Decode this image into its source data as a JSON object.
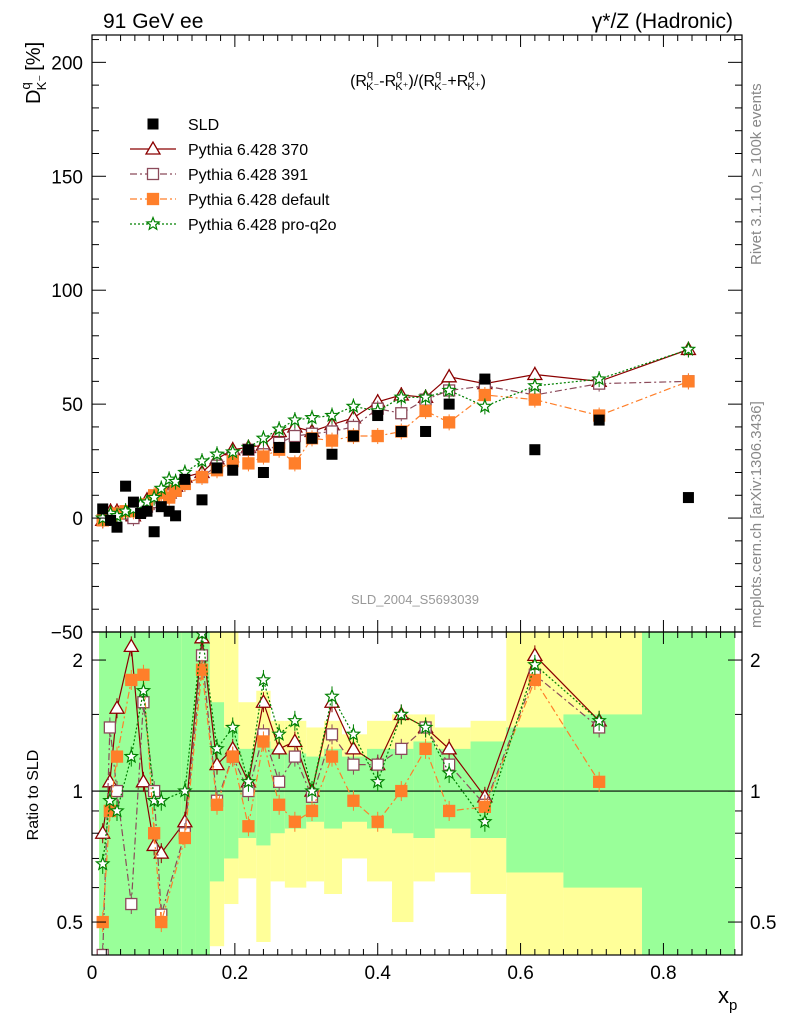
{
  "header": {
    "left": "91 GeV ee",
    "right": "γ*/Z (Hadronic)"
  },
  "side_text": {
    "rivet": "Rivet 3.1.10, ≥ 100k events",
    "mcplots": "mcplots.cern.ch [arXiv:1306.3436]"
  },
  "chart_data": {
    "type": "scatter",
    "title": "(R^q_K- - R^q_K+)/(R^q_K- + R^q_K+)",
    "ylabel": "D^q_K- [%]",
    "ylabel_main": "D",
    "ylabel_sup": "q",
    "ylabel_sub": "K⁻",
    "ylabel_unit": "[%]",
    "annotation_parts": [
      "(R",
      "q",
      "K⁻",
      "-R",
      "q",
      "K⁺",
      ")/(R",
      "q",
      "K⁻",
      "+R",
      "q",
      "K⁺",
      ")"
    ],
    "ratio_ylabel": "Ratio to SLD",
    "xlabel": "x",
    "xlabel_sub": "p",
    "watermark": "SLD_2004_S5693039",
    "xlim": [
      0,
      0.91
    ],
    "ylim": [
      -50,
      212
    ],
    "ratio_ylim": [
      0.42,
      2.32
    ],
    "ratio_log": true,
    "x_ticks": [
      0,
      0.2,
      0.4,
      0.6,
      0.8
    ],
    "x_tick_labels": [
      "0",
      "0.2",
      "0.4",
      "0.6",
      "0.8"
    ],
    "y_ticks": [
      -50,
      0,
      50,
      100,
      150,
      200
    ],
    "y_tick_labels": [
      "−50",
      "0",
      "50",
      "100",
      "150",
      "200"
    ],
    "ratio_ticks": [
      0.5,
      1,
      2
    ],
    "ratio_tick_labels": [
      "0.5",
      "1",
      "2"
    ],
    "colors": {
      "data": "#000000",
      "p370": "#8b0000",
      "p391": "#8b4a5a",
      "pdefault": "#ff7f2a",
      "pq2o": "#008000",
      "band_inner": "#99ff99",
      "band_outer": "#ffff99"
    },
    "legend_placement": "top-left",
    "legend": [
      {
        "key": "data",
        "label": "SLD"
      },
      {
        "key": "p370",
        "label": "Pythia 6.428 370"
      },
      {
        "key": "p391",
        "label": "Pythia 6.428 391"
      },
      {
        "key": "pdefault",
        "label": "Pythia 6.428 default"
      },
      {
        "key": "pq2o",
        "label": "Pythia 6.428 pro-q2o"
      }
    ],
    "data_points": {
      "x": [
        0.015,
        0.026,
        0.035,
        0.047,
        0.058,
        0.068,
        0.077,
        0.087,
        0.097,
        0.108,
        0.117,
        0.13,
        0.154,
        0.175,
        0.197,
        0.219,
        0.24,
        0.262,
        0.284,
        0.308,
        0.336,
        0.366,
        0.4,
        0.433,
        0.467,
        0.5,
        0.55,
        0.62,
        0.71,
        0.835
      ],
      "y": [
        4,
        -1,
        -4,
        14,
        7,
        2,
        3,
        -6,
        5,
        3,
        1,
        17,
        8,
        22,
        21,
        30,
        20,
        31,
        31,
        35,
        28,
        36,
        45,
        38,
        38,
        50,
        61,
        30,
        43,
        9
      ]
    },
    "series": [
      {
        "key": "p370",
        "name": "Pythia 6.428 370",
        "style": "solid",
        "marker": "triangle",
        "x": [
          0.015,
          0.026,
          0.035,
          0.047,
          0.058,
          0.068,
          0.077,
          0.087,
          0.097,
          0.108,
          0.117,
          0.13,
          0.154,
          0.175,
          0.197,
          0.219,
          0.24,
          0.262,
          0.284,
          0.308,
          0.336,
          0.366,
          0.4,
          0.433,
          0.467,
          0.5,
          0.55,
          0.62,
          0.71,
          0.835
        ],
        "y": [
          -1,
          3,
          3,
          2,
          1,
          5,
          8,
          7,
          12,
          11,
          14,
          18,
          20,
          26,
          30,
          31,
          32,
          38,
          40,
          38,
          41,
          44,
          51,
          54,
          53,
          62,
          59,
          63,
          60,
          74
        ]
      },
      {
        "key": "p391",
        "name": "Pythia 6.428 391",
        "style": "dashdot",
        "marker": "square",
        "x": [
          0.015,
          0.026,
          0.035,
          0.047,
          0.058,
          0.068,
          0.077,
          0.087,
          0.097,
          0.108,
          0.117,
          0.13,
          0.154,
          0.175,
          0.197,
          0.219,
          0.24,
          0.262,
          0.284,
          0.308,
          0.336,
          0.366,
          0.4,
          0.433,
          0.467,
          0.5,
          0.55,
          0.62,
          0.71,
          0.835
        ],
        "y": [
          -1,
          0,
          2,
          2,
          0,
          3,
          5,
          7,
          9,
          10,
          12,
          15,
          18,
          23,
          27,
          30,
          28,
          33,
          36,
          37,
          38,
          40,
          48,
          46,
          52,
          56,
          58,
          54,
          59,
          60
        ]
      },
      {
        "key": "pdefault",
        "name": "Pythia 6.428 default",
        "style": "dashdot",
        "marker": "filledsquare",
        "x": [
          0.015,
          0.026,
          0.035,
          0.047,
          0.058,
          0.068,
          0.077,
          0.087,
          0.097,
          0.108,
          0.117,
          0.13,
          0.154,
          0.175,
          0.197,
          0.219,
          0.24,
          0.262,
          0.284,
          0.308,
          0.336,
          0.366,
          0.4,
          0.433,
          0.467,
          0.5,
          0.55,
          0.62,
          0.71,
          0.835
        ],
        "y": [
          -1,
          1,
          2,
          3,
          3,
          5,
          6,
          10,
          11,
          9,
          12,
          15,
          18,
          21,
          25,
          24,
          27,
          30,
          24,
          35,
          34,
          36,
          36,
          38,
          47,
          42,
          54,
          52,
          45,
          60
        ]
      },
      {
        "key": "pq2o",
        "name": "Pythia 6.428 pro-q2o",
        "style": "dotted",
        "marker": "star",
        "x": [
          0.015,
          0.026,
          0.035,
          0.047,
          0.058,
          0.068,
          0.077,
          0.087,
          0.097,
          0.108,
          0.117,
          0.13,
          0.154,
          0.175,
          0.197,
          0.219,
          0.24,
          0.262,
          0.284,
          0.308,
          0.336,
          0.366,
          0.4,
          0.433,
          0.467,
          0.5,
          0.55,
          0.62,
          0.71,
          0.835
        ],
        "y": [
          0,
          2,
          1,
          3,
          4,
          6,
          7,
          9,
          13,
          17,
          16,
          20,
          25,
          28,
          29,
          31,
          35,
          39,
          43,
          44,
          45,
          49,
          47,
          53,
          53,
          56,
          49,
          58,
          61,
          74
        ]
      }
    ],
    "ratios": {
      "x": [
        0.015,
        0.025,
        0.035,
        0.055,
        0.072,
        0.087,
        0.097,
        0.13,
        0.154,
        0.175,
        0.197,
        0.219,
        0.24,
        0.262,
        0.284,
        0.308,
        0.336,
        0.366,
        0.4,
        0.433,
        0.467,
        0.5,
        0.55,
        0.62,
        0.71
      ],
      "p370": [
        0.8,
        1.05,
        1.55,
        2.15,
        1.05,
        0.75,
        0.72,
        0.85,
        2.25,
        1.15,
        1.25,
        1.05,
        1.6,
        1.25,
        1.3,
        1.0,
        1.6,
        1.25,
        1.15,
        1.5,
        1.4,
        1.25,
        0.97,
        2.05,
        1.45
      ],
      "p391": [
        0.42,
        1.4,
        1.0,
        0.55,
        1.6,
        1.0,
        0.52,
        0.8,
        2.05,
        0.95,
        1.2,
        1.0,
        1.35,
        1.05,
        1.2,
        0.97,
        1.35,
        1.15,
        1.15,
        1.25,
        1.4,
        1.15,
        0.93,
        1.85,
        1.4
      ],
      "pdefault": [
        0.5,
        0.9,
        1.2,
        1.8,
        1.85,
        0.8,
        0.5,
        0.78,
        1.9,
        0.93,
        1.2,
        0.83,
        1.3,
        0.93,
        0.85,
        0.9,
        1.2,
        0.95,
        0.85,
        1.0,
        1.25,
        0.9,
        0.92,
        1.8,
        1.05
      ],
      "pq2o": [
        0.68,
        0.95,
        0.9,
        1.2,
        1.7,
        0.95,
        0.95,
        1.0,
        2.3,
        1.25,
        1.4,
        1.05,
        1.8,
        1.35,
        1.45,
        1.0,
        1.65,
        1.35,
        1.05,
        1.5,
        1.4,
        1.1,
        0.85,
        1.95,
        1.45
      ]
    },
    "error_bands": [
      {
        "x0": 0.01,
        "x1": 0.125,
        "in_lo": 0.42,
        "in_hi": 2.32,
        "out_lo": 0.42,
        "out_hi": 2.32
      },
      {
        "x0": 0.125,
        "x1": 0.145,
        "in_lo": 0.42,
        "in_hi": 2.32,
        "out_lo": 0.42,
        "out_hi": 2.32
      },
      {
        "x0": 0.145,
        "x1": 0.165,
        "in_lo": 0.42,
        "in_hi": 2.32,
        "out_lo": 0.42,
        "out_hi": 2.32
      },
      {
        "x0": 0.165,
        "x1": 0.185,
        "in_lo": 0.62,
        "in_hi": 1.6,
        "out_lo": 0.44,
        "out_hi": 2.32
      },
      {
        "x0": 0.185,
        "x1": 0.205,
        "in_lo": 0.7,
        "in_hi": 1.4,
        "out_lo": 0.55,
        "out_hi": 2.32
      },
      {
        "x0": 0.205,
        "x1": 0.23,
        "in_lo": 0.78,
        "in_hi": 1.25,
        "out_lo": 0.63,
        "out_hi": 1.6
      },
      {
        "x0": 0.23,
        "x1": 0.25,
        "in_lo": 0.75,
        "in_hi": 1.3,
        "out_lo": 0.45,
        "out_hi": 1.7
      },
      {
        "x0": 0.25,
        "x1": 0.27,
        "in_lo": 0.8,
        "in_hi": 1.25,
        "out_lo": 0.62,
        "out_hi": 1.45
      },
      {
        "x0": 0.27,
        "x1": 0.3,
        "in_lo": 0.82,
        "in_hi": 1.22,
        "out_lo": 0.6,
        "out_hi": 1.45
      },
      {
        "x0": 0.3,
        "x1": 0.325,
        "in_lo": 0.85,
        "in_hi": 1.2,
        "out_lo": 0.62,
        "out_hi": 1.4
      },
      {
        "x0": 0.325,
        "x1": 0.35,
        "in_lo": 0.82,
        "in_hi": 1.25,
        "out_lo": 0.58,
        "out_hi": 1.45
      },
      {
        "x0": 0.35,
        "x1": 0.385,
        "in_lo": 0.85,
        "in_hi": 1.2,
        "out_lo": 0.7,
        "out_hi": 1.35
      },
      {
        "x0": 0.385,
        "x1": 0.42,
        "in_lo": 0.82,
        "in_hi": 1.25,
        "out_lo": 0.62,
        "out_hi": 1.45
      },
      {
        "x0": 0.42,
        "x1": 0.45,
        "in_lo": 0.8,
        "in_hi": 1.25,
        "out_lo": 0.5,
        "out_hi": 1.5
      },
      {
        "x0": 0.45,
        "x1": 0.48,
        "in_lo": 0.78,
        "in_hi": 1.3,
        "out_lo": 0.62,
        "out_hi": 1.5
      },
      {
        "x0": 0.48,
        "x1": 0.53,
        "in_lo": 0.82,
        "in_hi": 1.25,
        "out_lo": 0.65,
        "out_hi": 1.4
      },
      {
        "x0": 0.53,
        "x1": 0.58,
        "in_lo": 0.78,
        "in_hi": 1.3,
        "out_lo": 0.58,
        "out_hi": 1.45
      },
      {
        "x0": 0.58,
        "x1": 0.66,
        "in_lo": 0.65,
        "in_hi": 1.4,
        "out_lo": 0.42,
        "out_hi": 2.32
      },
      {
        "x0": 0.66,
        "x1": 0.77,
        "in_lo": 0.6,
        "in_hi": 1.5,
        "out_lo": 0.42,
        "out_hi": 2.32
      },
      {
        "x0": 0.77,
        "x1": 0.9,
        "in_lo": 0.42,
        "in_hi": 2.32,
        "out_lo": 0.42,
        "out_hi": 2.32
      }
    ]
  }
}
